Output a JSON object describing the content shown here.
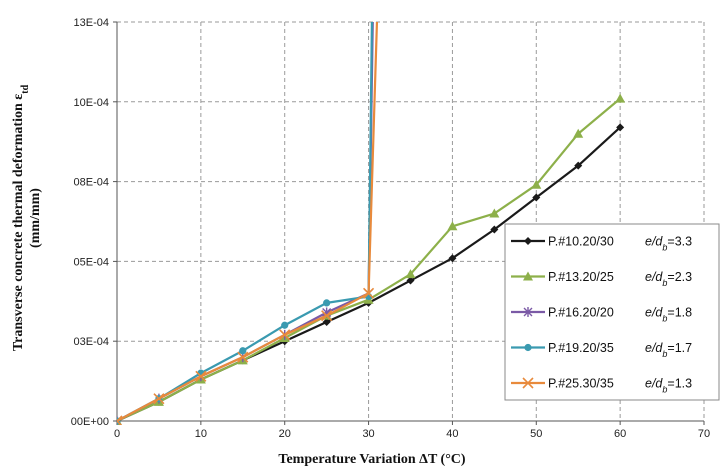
{
  "chart_data": {
    "type": "line",
    "title": "",
    "xlabel": "Temperature Variation ΔT (°C)",
    "ylabel_line1": "Transverse concrete thermal deformation ε",
    "ylabel_sub": "td",
    "ylabel_line2": "(mm/mm)",
    "xlim": [
      0,
      70
    ],
    "ylim": [
      0,
      0.00125
    ],
    "x_ticks": [
      0,
      10,
      20,
      30,
      40,
      50,
      60,
      70
    ],
    "x_tick_labels": [
      "0",
      "10",
      "20",
      "30",
      "40",
      "50",
      "60",
      "70"
    ],
    "y_ticks": [
      0,
      0.00025,
      0.0005,
      0.00075,
      0.001,
      0.00125
    ],
    "y_tick_labels": [
      "00E+00",
      "03E-04",
      "05E-04",
      "08E-04",
      "10E-04",
      "13E-04"
    ],
    "grid": true,
    "legend_position": "right",
    "series": [
      {
        "name": "P.#10.20/30",
        "ratio_symbol": "e/d",
        "ratio_sub": "b",
        "ratio_value": "=3.3",
        "color": "#1a1a1a",
        "marker": "diamond",
        "x": [
          0,
          5,
          10,
          15,
          20,
          25,
          30,
          35,
          40,
          45,
          50,
          55,
          60
        ],
        "y": [
          0,
          6e-05,
          0.00013,
          0.00019,
          0.00025,
          0.00031,
          0.00037,
          0.00044,
          0.00051,
          0.0006,
          0.0007,
          0.0008,
          0.00092
        ]
      },
      {
        "name": "P.#13.20/25",
        "ratio_symbol": "e/d",
        "ratio_sub": "b",
        "ratio_value": "=2.3",
        "color": "#8db04a",
        "marker": "triangle",
        "x": [
          0,
          5,
          10,
          15,
          20,
          25,
          30,
          35,
          40,
          45,
          50,
          55,
          60
        ],
        "y": [
          0,
          6e-05,
          0.00013,
          0.00019,
          0.00026,
          0.00033,
          0.00038,
          0.00046,
          0.00061,
          0.00065,
          0.00074,
          0.0009,
          0.00101
        ]
      },
      {
        "name": "P.#16.20/20",
        "ratio_symbol": "e/d",
        "ratio_sub": "b",
        "ratio_value": "=1.8",
        "color": "#7b5aa6",
        "marker": "star",
        "x": [
          0,
          5,
          10,
          15,
          20,
          25,
          30,
          30.5
        ],
        "y": [
          0,
          7e-05,
          0.00014,
          0.0002,
          0.00027,
          0.00034,
          0.0004,
          0.00125
        ]
      },
      {
        "name": "P.#19.20/35",
        "ratio_symbol": "e/d",
        "ratio_sub": "b",
        "ratio_value": "=1.7",
        "color": "#3a9ab0",
        "marker": "circle",
        "x": [
          0,
          5,
          10,
          15,
          20,
          25,
          30,
          30.4
        ],
        "y": [
          0,
          7e-05,
          0.00015,
          0.00022,
          0.0003,
          0.00037,
          0.00039,
          0.00125
        ]
      },
      {
        "name": "P.#25.30/35",
        "ratio_symbol": "e/d",
        "ratio_sub": "b",
        "ratio_value": "=1.3",
        "color": "#e88a3c",
        "marker": "x",
        "x": [
          0,
          5,
          10,
          15,
          20,
          25,
          30,
          31
        ],
        "y": [
          0,
          7e-05,
          0.00014,
          0.0002,
          0.00027,
          0.00033,
          0.0004,
          0.00125
        ]
      }
    ]
  }
}
